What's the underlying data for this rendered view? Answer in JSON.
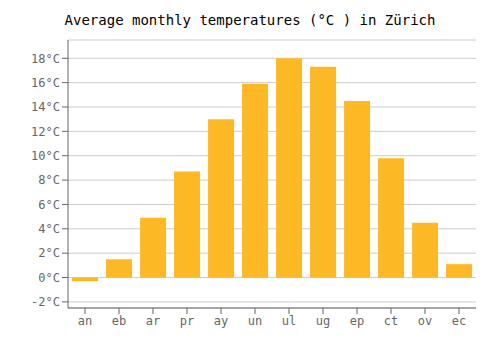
{
  "chart_data": {
    "type": "bar",
    "title": "Average monthly temperatures (°C ) in Zürich",
    "categories": [
      "an",
      "eb",
      "ar",
      "pr",
      "ay",
      "un",
      "ul",
      "ug",
      "ep",
      "ct",
      "ov",
      "ec"
    ],
    "values": [
      -0.3,
      1.5,
      4.9,
      8.7,
      13.0,
      15.9,
      18.0,
      17.3,
      14.5,
      9.8,
      4.5,
      1.1
    ],
    "color": "#FDB825",
    "ylim": [
      -2.5,
      19.5
    ],
    "yticks": [
      {
        "value": -2,
        "label": "-2°C"
      },
      {
        "value": 0,
        "label": "0°C"
      },
      {
        "value": 2,
        "label": "2°C"
      },
      {
        "value": 4,
        "label": "4°C"
      },
      {
        "value": 6,
        "label": "6°C"
      },
      {
        "value": 8,
        "label": "8°C"
      },
      {
        "value": 10,
        "label": "10°C"
      },
      {
        "value": 12,
        "label": "12°C"
      },
      {
        "value": 14,
        "label": "14°C"
      },
      {
        "value": 16,
        "label": "16°C"
      },
      {
        "value": 18,
        "label": "18°C"
      }
    ],
    "grid": true
  }
}
